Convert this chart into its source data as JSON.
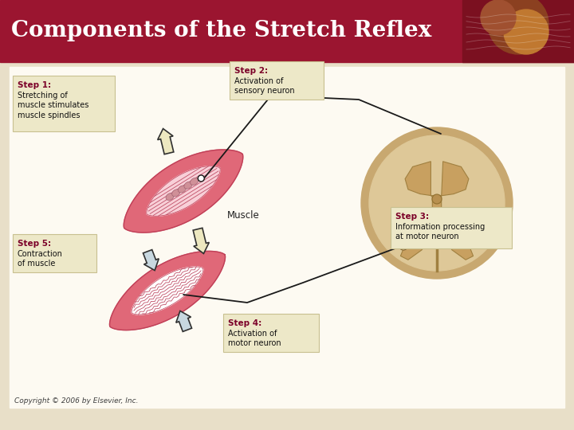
{
  "title": "Components of the Stretch Reflex",
  "title_color": "#FFFFFF",
  "header_bg_color": "#9B1530",
  "body_bg_color": "#E8DFC8",
  "inner_bg_color": "#FDFAF2",
  "copyright": "Copyright © 2006 by Elsevier, Inc.",
  "step1_label": "Step 1:",
  "step1_text": "Stretching of\nmuscle stimulates\nmuscle spindles",
  "step2_label": "Step 2:",
  "step2_text": "Activation of\nsensory neuron",
  "step3_label": "Step 3:",
  "step3_text": "Information processing\nat motor neuron",
  "step4_label": "Step 4:",
  "step4_text": "Activation of\nmotor neuron",
  "step5_label": "Step 5:",
  "step5_text": "Contraction\nof muscle",
  "muscle_label": "Muscle",
  "step_label_color": "#7B0028",
  "step_box_facecolor": "#EDE8C8",
  "step_box_edgecolor": "#C8C090",
  "muscle_outer": "#E06878",
  "muscle_edge": "#C04058",
  "muscle_inner_light": "#F8D0D8",
  "muscle_fiber": "#C05068",
  "spine_outer": "#C8A870",
  "spine_inner": "#DEC898",
  "spine_gray": "#C8A060",
  "arrow_stretch_fill": "#EDE8C0",
  "arrow_stretch_edge": "#303030",
  "arrow_contract_fill": "#C8D8E0",
  "arrow_contract_edge": "#303030"
}
